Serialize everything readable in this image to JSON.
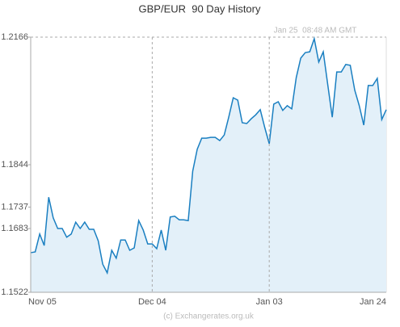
{
  "chart_data": {
    "type": "area",
    "title": "GBP/EUR  90 Day History",
    "annotation": "Jan 25  08:48 AM GMT",
    "footer": "(c) Exchangerates.org.uk",
    "categories": [
      "Nov 05",
      null,
      null,
      null,
      null,
      null,
      null,
      null,
      null,
      null,
      null,
      null,
      null,
      null,
      null,
      null,
      null,
      null,
      null,
      null,
      null,
      null,
      null,
      null,
      null,
      null,
      null,
      "Dec 04",
      null,
      null,
      null,
      null,
      null,
      null,
      null,
      null,
      null,
      null,
      null,
      null,
      null,
      null,
      null,
      null,
      null,
      null,
      null,
      null,
      null,
      null,
      null,
      null,
      null,
      "Jan 03",
      null,
      null,
      null,
      null,
      null,
      null,
      null,
      null,
      null,
      null,
      null,
      null,
      null,
      null,
      null,
      null,
      null,
      null,
      null,
      null,
      null,
      null,
      null,
      null,
      null,
      "Jan 24"
    ],
    "values": [
      1.1622,
      1.1624,
      1.1669,
      1.164,
      1.1762,
      1.171,
      1.1683,
      1.1683,
      1.1661,
      1.1669,
      1.1699,
      1.1683,
      1.1699,
      1.1681,
      1.1681,
      1.1652,
      1.1593,
      1.1571,
      1.1628,
      1.1608,
      1.1654,
      1.1654,
      1.1628,
      1.1634,
      1.1703,
      1.1679,
      1.1644,
      1.1644,
      1.1632,
      1.1679,
      1.1628,
      1.1712,
      1.1714,
      1.1705,
      1.1705,
      1.1703,
      1.1828,
      1.1883,
      1.1911,
      1.1911,
      1.1913,
      1.1913,
      1.1905,
      1.1919,
      1.1964,
      1.2013,
      1.2007,
      1.195,
      1.1948,
      1.196,
      1.197,
      1.1983,
      1.1938,
      1.1897,
      1.1997,
      1.2003,
      1.1981,
      1.1993,
      1.1985,
      1.2064,
      1.2113,
      1.2127,
      1.2129,
      1.2162,
      1.2103,
      1.2129,
      1.2046,
      1.1964,
      1.2078,
      1.2078,
      1.2097,
      1.2095,
      1.2032,
      1.1993,
      1.1944,
      1.2044,
      1.2044,
      1.2062,
      1.1958,
      1.1983
    ],
    "color": "#1a7fc1",
    "fill": "#e3f0f9",
    "ylim": [
      1.1522,
      1.2166
    ],
    "yticks": [
      1.1522,
      1.1683,
      1.1737,
      1.1844,
      1.2166
    ]
  }
}
